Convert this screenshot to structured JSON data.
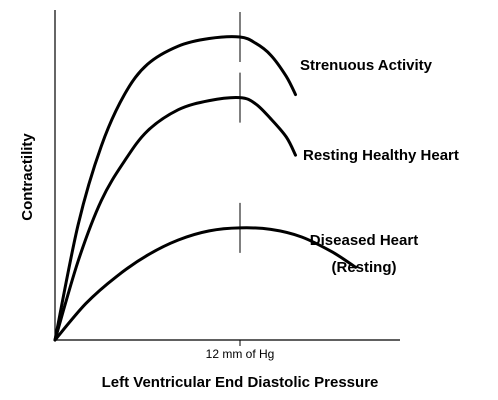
{
  "chart_data": {
    "type": "line",
    "title": "",
    "xlabel": "Left Ventricular End Diastolic Pressure",
    "ylabel": "Contractility",
    "x_ticks": [
      {
        "x": 12,
        "label": "12 mm of Hg"
      }
    ],
    "xlim": [
      0,
      21
    ],
    "ylim": [
      0,
      10
    ],
    "grid": false,
    "legend": "none",
    "colors": {
      "line": "#000000",
      "background": "#ffffff"
    },
    "series": [
      {
        "name": "Strenuous Activity",
        "label": "Strenuous Activity",
        "points": [
          [
            0,
            0
          ],
          [
            1.5,
            3.8
          ],
          [
            3,
            6.4
          ],
          [
            4.5,
            8.1
          ],
          [
            6,
            9.1
          ],
          [
            8,
            9.7
          ],
          [
            10,
            9.95
          ],
          [
            12,
            10.0
          ],
          [
            13,
            9.8
          ],
          [
            14,
            9.4
          ],
          [
            15,
            8.7
          ],
          [
            15.6,
            8.1
          ]
        ]
      },
      {
        "name": "Resting Healthy Heart",
        "label": "Resting Healthy Heart",
        "points": [
          [
            0,
            0
          ],
          [
            1.5,
            2.6
          ],
          [
            3,
            4.6
          ],
          [
            4.5,
            5.9
          ],
          [
            6,
            6.9
          ],
          [
            8,
            7.6
          ],
          [
            10,
            7.9
          ],
          [
            12,
            8.0
          ],
          [
            13,
            7.8
          ],
          [
            14,
            7.3
          ],
          [
            15,
            6.7
          ],
          [
            15.6,
            6.1
          ]
        ]
      },
      {
        "name": "Diseased Heart (Resting)",
        "label_lines": [
          "Diseased Heart",
          "(Resting)"
        ],
        "points": [
          [
            0,
            0
          ],
          [
            2,
            1.2
          ],
          [
            4,
            2.1
          ],
          [
            6,
            2.8
          ],
          [
            8,
            3.3
          ],
          [
            10,
            3.6
          ],
          [
            12,
            3.7
          ],
          [
            14,
            3.65
          ],
          [
            16,
            3.4
          ],
          [
            18,
            2.9
          ],
          [
            19.5,
            2.4
          ]
        ]
      }
    ]
  }
}
